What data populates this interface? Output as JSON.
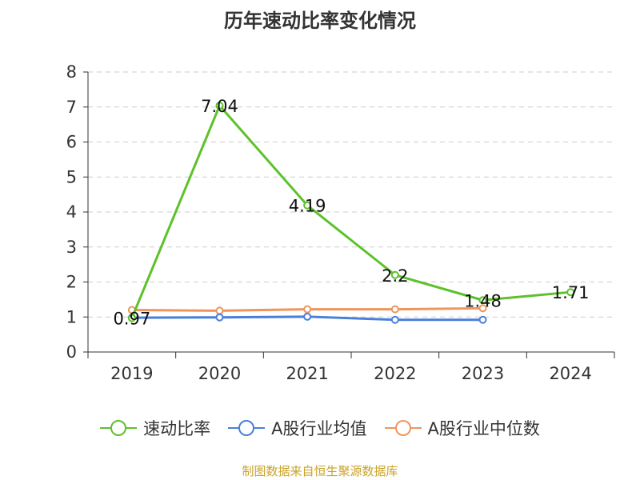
{
  "chart_data": {
    "type": "line",
    "title": "历年速动比率变化情况",
    "categories": [
      "2019",
      "2020",
      "2021",
      "2022",
      "2023",
      "2024"
    ],
    "y_ticks": [
      "0",
      "1",
      "2",
      "3",
      "4",
      "5",
      "6",
      "7",
      "8"
    ],
    "ylim": [
      0,
      8
    ],
    "grid": "horizontal dashed",
    "legend_position": "bottom",
    "series": [
      {
        "name": "速动比率",
        "color": "#5dc12a",
        "values": [
          0.97,
          7.04,
          4.19,
          2.2,
          1.48,
          1.71
        ],
        "labels": [
          "0.97",
          "7.04",
          "4.19",
          "2.2",
          "1.48",
          "1.71"
        ]
      },
      {
        "name": "A股行业均值",
        "color": "#4a7fd9",
        "values": [
          0.98,
          0.99,
          1.01,
          0.92,
          0.92,
          null
        ]
      },
      {
        "name": "A股行业中位数",
        "color": "#f0945c",
        "values": [
          1.2,
          1.18,
          1.22,
          1.22,
          1.25,
          null
        ]
      }
    ]
  },
  "footer": {
    "source": "制图数据来自恒生聚源数据库"
  }
}
